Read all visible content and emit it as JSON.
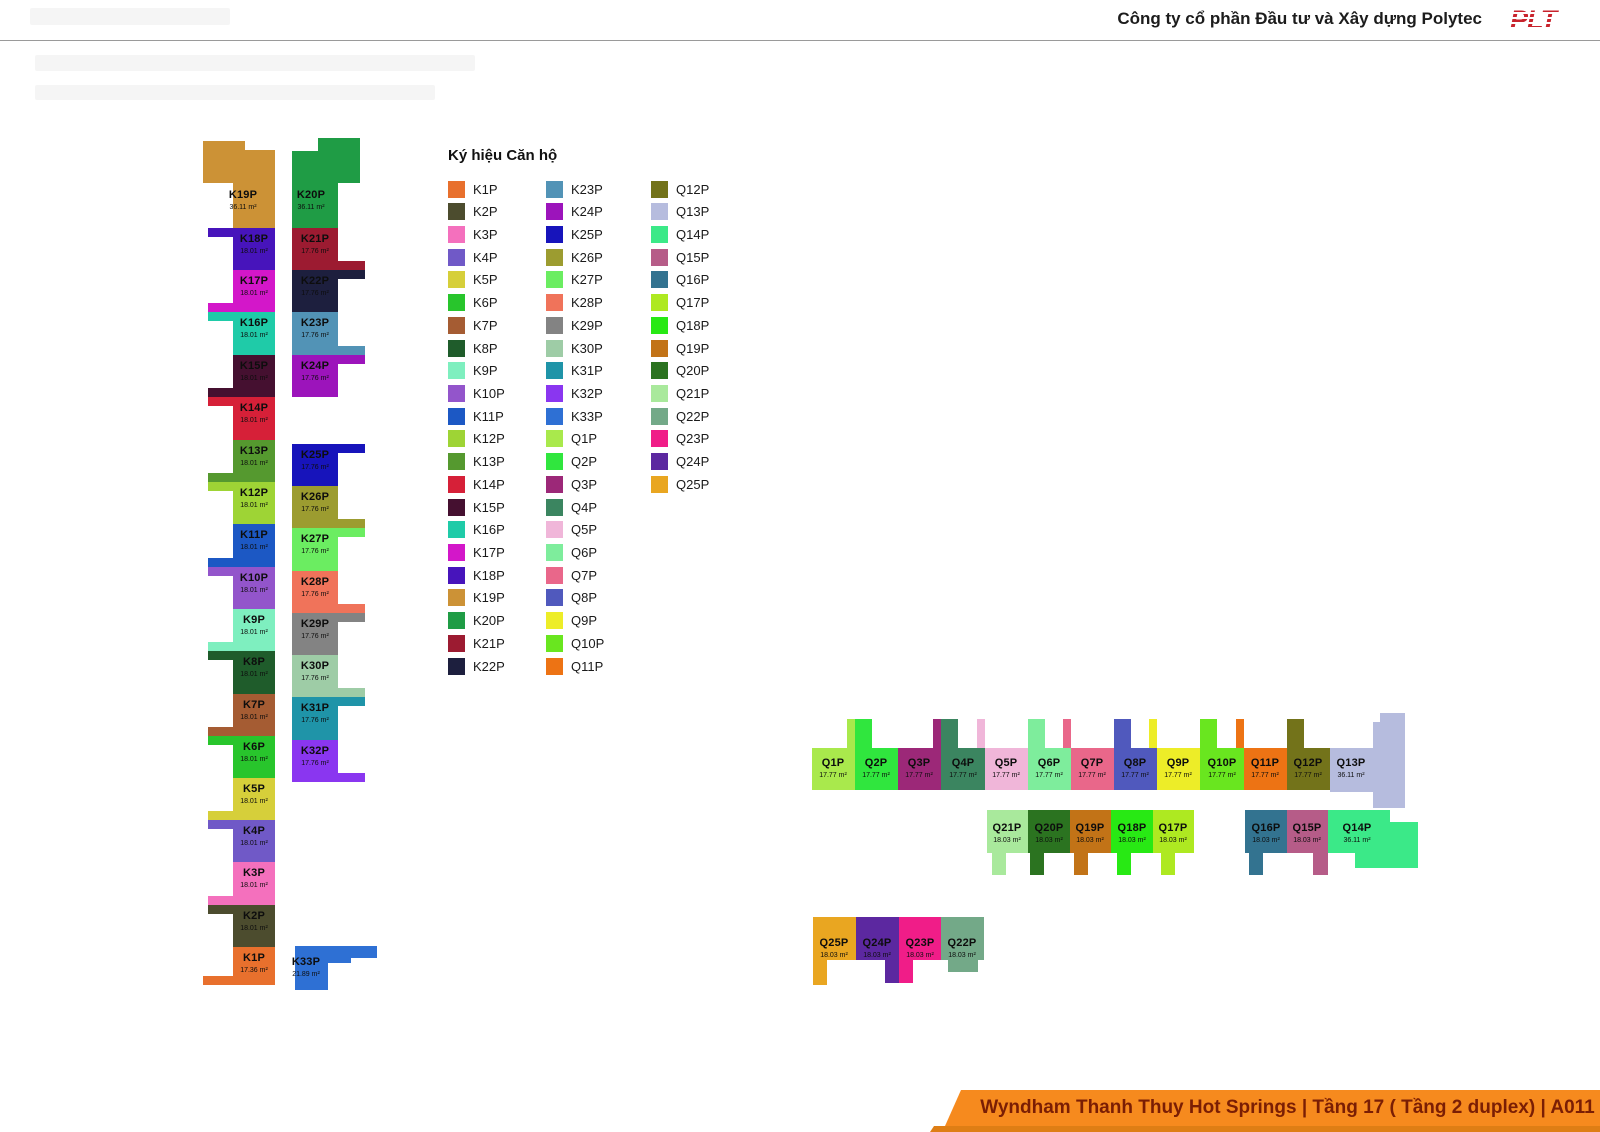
{
  "header": {
    "company": "Công ty cổ phần Đầu tư và Xây dựng Polytec",
    "logo": "PLT"
  },
  "legend": {
    "title": "Ký hiệu Căn hộ"
  },
  "footer": {
    "text": "Wyndham Thanh Thuy Hot Springs | Tầng 17 ( Tầng 2 duplex) | A011"
  },
  "units": [
    {
      "code": "K1P",
      "area": "17.36 m²",
      "color": "#E8702D"
    },
    {
      "code": "K2P",
      "area": "18.01 m²",
      "color": "#4C4C2E"
    },
    {
      "code": "K3P",
      "area": "18.01 m²",
      "color": "#F470BD"
    },
    {
      "code": "K4P",
      "area": "18.01 m²",
      "color": "#7059C7"
    },
    {
      "code": "K5P",
      "area": "18.01 m²",
      "color": "#D6CF3A"
    },
    {
      "code": "K6P",
      "area": "18.01 m²",
      "color": "#28C52C"
    },
    {
      "code": "K7P",
      "area": "18.01 m²",
      "color": "#A55C33"
    },
    {
      "code": "K8P",
      "area": "18.01 m²",
      "color": "#1F5C2B"
    },
    {
      "code": "K9P",
      "area": "18.01 m²",
      "color": "#7EEFBF"
    },
    {
      "code": "K10P",
      "area": "18.01 m²",
      "color": "#9355CB"
    },
    {
      "code": "K11P",
      "area": "18.01 m²",
      "color": "#1C58C4"
    },
    {
      "code": "K12P",
      "area": "18.01 m²",
      "color": "#9ED435"
    },
    {
      "code": "K13P",
      "area": "18.01 m²",
      "color": "#55992F"
    },
    {
      "code": "K14P",
      "area": "18.01 m²",
      "color": "#D62038"
    },
    {
      "code": "K15P",
      "area": "18.01 m²",
      "color": "#451030"
    },
    {
      "code": "K16P",
      "area": "18.01 m²",
      "color": "#1FCBA8"
    },
    {
      "code": "K17P",
      "area": "18.01 m²",
      "color": "#D317C9"
    },
    {
      "code": "K18P",
      "area": "18.01 m²",
      "color": "#4714BB"
    },
    {
      "code": "K19P",
      "area": "36.11 m²",
      "color": "#CC9236"
    },
    {
      "code": "K20P",
      "area": "36.11 m²",
      "color": "#1F9C45"
    },
    {
      "code": "K21P",
      "area": "17.76 m²",
      "color": "#9C1B31"
    },
    {
      "code": "K22P",
      "area": "17.76 m²",
      "color": "#1D1F3E"
    },
    {
      "code": "K23P",
      "area": "17.76 m²",
      "color": "#5293B6"
    },
    {
      "code": "K24P",
      "area": "17.76 m²",
      "color": "#9C14BB"
    },
    {
      "code": "K25P",
      "area": "17.76 m²",
      "color": "#1714BB"
    },
    {
      "code": "K26P",
      "area": "17.76 m²",
      "color": "#9C9C30"
    },
    {
      "code": "K27P",
      "area": "17.76 m²",
      "color": "#6BED61"
    },
    {
      "code": "K28P",
      "area": "17.76 m²",
      "color": "#F0735A"
    },
    {
      "code": "K29P",
      "area": "17.76 m²",
      "color": "#838383"
    },
    {
      "code": "K30P",
      "area": "17.76 m²",
      "color": "#9ECCA6"
    },
    {
      "code": "K31P",
      "area": "17.76 m²",
      "color": "#1F94A8"
    },
    {
      "code": "K32P",
      "area": "17.76 m²",
      "color": "#8A36F0"
    },
    {
      "code": "K33P",
      "area": "21.89 m²",
      "color": "#2E70D4"
    },
    {
      "code": "Q1P",
      "area": "17.77 m²",
      "color": "#A9E94C"
    },
    {
      "code": "Q2P",
      "area": "17.77 m²",
      "color": "#30E63E"
    },
    {
      "code": "Q3P",
      "area": "17.77 m²",
      "color": "#9C2878"
    },
    {
      "code": "Q4P",
      "area": "17.77 m²",
      "color": "#3B8560"
    },
    {
      "code": "Q5P",
      "area": "17.77 m²",
      "color": "#F0B6D9"
    },
    {
      "code": "Q6P",
      "area": "17.77 m²",
      "color": "#7EED9C"
    },
    {
      "code": "Q7P",
      "area": "17.77 m²",
      "color": "#E9678A"
    },
    {
      "code": "Q8P",
      "area": "17.77 m²",
      "color": "#5059BD"
    },
    {
      "code": "Q9P",
      "area": "17.77 m²",
      "color": "#EDED28"
    },
    {
      "code": "Q10P",
      "area": "17.77 m²",
      "color": "#69E61F"
    },
    {
      "code": "Q11P",
      "area": "17.77 m²",
      "color": "#ED7314"
    },
    {
      "code": "Q12P",
      "area": "17.77 m²",
      "color": "#73731A"
    },
    {
      "code": "Q13P",
      "area": "36.11 m²",
      "color": "#B6BCDE"
    },
    {
      "code": "Q14P",
      "area": "36.11 m²",
      "color": "#3BE988"
    },
    {
      "code": "Q15P",
      "area": "18.03 m²",
      "color": "#B65C88"
    },
    {
      "code": "Q16P",
      "area": "18.03 m²",
      "color": "#337390"
    },
    {
      "code": "Q17P",
      "area": "18.03 m²",
      "color": "#AEE921"
    },
    {
      "code": "Q18P",
      "area": "18.03 m²",
      "color": "#28E914"
    },
    {
      "code": "Q19P",
      "area": "18.03 m²",
      "color": "#C27317"
    },
    {
      "code": "Q20P",
      "area": "18.03 m²",
      "color": "#2B7320"
    },
    {
      "code": "Q21P",
      "area": "18.03 m²",
      "color": "#A9E99C"
    },
    {
      "code": "Q22P",
      "area": "18.03 m²",
      "color": "#73A988"
    },
    {
      "code": "Q23P",
      "area": "18.03 m²",
      "color": "#F01D88"
    },
    {
      "code": "Q24P",
      "area": "18.03 m²",
      "color": "#5C28A0"
    },
    {
      "code": "Q25P",
      "area": "18.03 m²",
      "color": "#E9A621"
    }
  ]
}
